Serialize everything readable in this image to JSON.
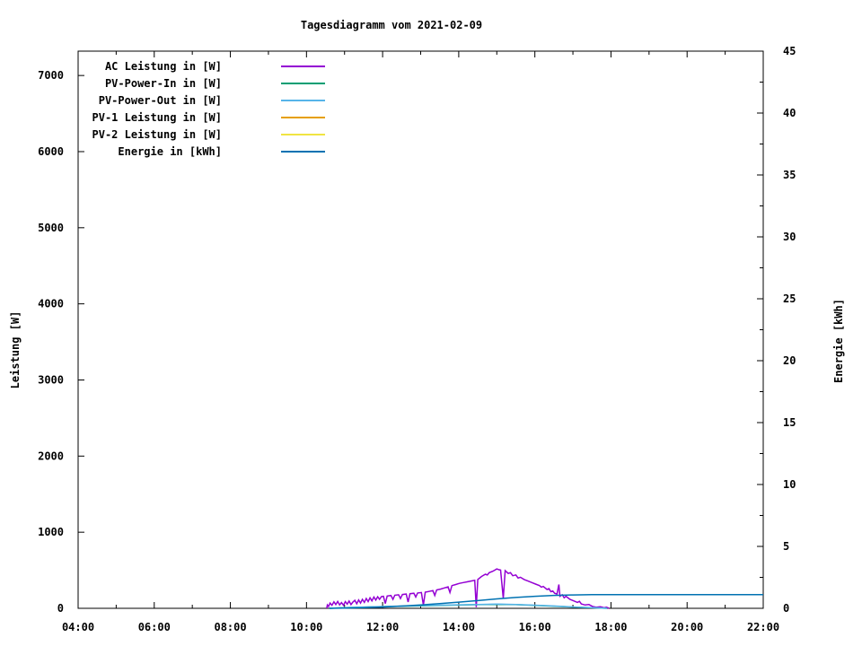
{
  "title": "Tagesdiagramm vom 2021-02-09",
  "axes": {
    "left_label": "Leistung [W]",
    "right_label": "Energie [kWh]"
  },
  "chart_data": {
    "type": "line",
    "title": "Tagesdiagramm vom 2021-02-09",
    "xlabel": "",
    "ylabel_left": "Leistung [W]",
    "ylabel_right": "Energie [kWh]",
    "grid": false,
    "legend_position": "top-left-inside",
    "background_color": "#ffffff",
    "axis_color": "#000000",
    "xlim": [
      4,
      22
    ],
    "x_major_tick_hours": [
      4,
      6,
      8,
      10,
      12,
      14,
      16,
      18,
      20,
      22
    ],
    "x_major_tick_labels": [
      "04:00",
      "06:00",
      "08:00",
      "10:00",
      "12:00",
      "14:00",
      "16:00",
      "18:00",
      "20:00",
      "22:00"
    ],
    "x_minor_tick_hours": [
      5,
      7,
      9,
      11,
      13,
      15,
      17,
      19,
      21
    ],
    "ylim_left": [
      0,
      7320
    ],
    "y_left_ticks": [
      0,
      1000,
      2000,
      3000,
      4000,
      5000,
      6000,
      7000
    ],
    "ylim_right": [
      0,
      45
    ],
    "y_right_ticks": [
      0,
      5,
      10,
      15,
      20,
      25,
      30,
      35,
      40,
      45
    ],
    "y_right_minor_ticks": [
      2.5,
      7.5,
      12.5,
      17.5,
      22.5,
      27.5,
      32.5,
      37.5,
      42.5
    ],
    "series": [
      {
        "name": "AC Leistung in [W]",
        "color": "#9400d3",
        "axis": "left",
        "points": [
          [
            10.53,
            0
          ],
          [
            10.55,
            45
          ],
          [
            10.58,
            25
          ],
          [
            10.62,
            70
          ],
          [
            10.67,
            40
          ],
          [
            10.72,
            85
          ],
          [
            10.77,
            50
          ],
          [
            10.82,
            90
          ],
          [
            10.87,
            45
          ],
          [
            10.92,
            75
          ],
          [
            10.97,
            40
          ],
          [
            11.02,
            88
          ],
          [
            11.07,
            55
          ],
          [
            11.12,
            95
          ],
          [
            11.17,
            50
          ],
          [
            11.22,
            82
          ],
          [
            11.27,
            105
          ],
          [
            11.32,
            60
          ],
          [
            11.37,
            110
          ],
          [
            11.42,
            70
          ],
          [
            11.47,
            118
          ],
          [
            11.52,
            78
          ],
          [
            11.57,
            128
          ],
          [
            11.62,
            88
          ],
          [
            11.67,
            138
          ],
          [
            11.72,
            98
          ],
          [
            11.77,
            148
          ],
          [
            11.82,
            108
          ],
          [
            11.87,
            152
          ],
          [
            11.92,
            118
          ],
          [
            11.97,
            155
          ],
          [
            12.02,
            158
          ],
          [
            12.07,
            62
          ],
          [
            12.12,
            162
          ],
          [
            12.22,
            168
          ],
          [
            12.27,
            118
          ],
          [
            12.32,
            172
          ],
          [
            12.42,
            178
          ],
          [
            12.47,
            128
          ],
          [
            12.52,
            182
          ],
          [
            12.62,
            188
          ],
          [
            12.67,
            82
          ],
          [
            12.72,
            192
          ],
          [
            12.82,
            198
          ],
          [
            12.87,
            148
          ],
          [
            12.92,
            202
          ],
          [
            13.02,
            208
          ],
          [
            13.07,
            42
          ],
          [
            13.12,
            212
          ],
          [
            13.22,
            222
          ],
          [
            13.32,
            232
          ],
          [
            13.37,
            168
          ],
          [
            13.42,
            242
          ],
          [
            13.52,
            252
          ],
          [
            13.62,
            268
          ],
          [
            13.72,
            282
          ],
          [
            13.77,
            208
          ],
          [
            13.82,
            298
          ],
          [
            13.92,
            312
          ],
          [
            14.02,
            328
          ],
          [
            14.12,
            338
          ],
          [
            14.22,
            348
          ],
          [
            14.32,
            358
          ],
          [
            14.42,
            368
          ],
          [
            14.46,
            15
          ],
          [
            14.5,
            378
          ],
          [
            14.6,
            418
          ],
          [
            14.7,
            448
          ],
          [
            14.75,
            438
          ],
          [
            14.8,
            468
          ],
          [
            14.9,
            488
          ],
          [
            15.0,
            518
          ],
          [
            15.05,
            508
          ],
          [
            15.1,
            502
          ],
          [
            15.17,
            130
          ],
          [
            15.22,
            495
          ],
          [
            15.3,
            458
          ],
          [
            15.36,
            468
          ],
          [
            15.42,
            428
          ],
          [
            15.5,
            438
          ],
          [
            15.56,
            398
          ],
          [
            15.62,
            408
          ],
          [
            15.72,
            378
          ],
          [
            15.82,
            358
          ],
          [
            15.92,
            338
          ],
          [
            16.02,
            318
          ],
          [
            16.12,
            298
          ],
          [
            16.17,
            278
          ],
          [
            16.22,
            288
          ],
          [
            16.32,
            248
          ],
          [
            16.37,
            258
          ],
          [
            16.42,
            218
          ],
          [
            16.47,
            228
          ],
          [
            16.52,
            198
          ],
          [
            16.58,
            188
          ],
          [
            16.63,
            312
          ],
          [
            16.66,
            158
          ],
          [
            16.72,
            178
          ],
          [
            16.77,
            138
          ],
          [
            16.82,
            158
          ],
          [
            16.92,
            118
          ],
          [
            17.02,
            98
          ],
          [
            17.12,
            78
          ],
          [
            17.17,
            92
          ],
          [
            17.22,
            58
          ],
          [
            17.32,
            44
          ],
          [
            17.42,
            50
          ],
          [
            17.52,
            24
          ],
          [
            17.62,
            14
          ],
          [
            17.72,
            20
          ],
          [
            17.82,
            8
          ],
          [
            17.88,
            14
          ],
          [
            17.95,
            0
          ]
        ]
      },
      {
        "name": "PV-Power-In in [W]",
        "color": "#009e73",
        "axis": "left",
        "points": [
          [
            10.6,
            0
          ],
          [
            11.0,
            8
          ],
          [
            11.5,
            14
          ],
          [
            12.0,
            22
          ],
          [
            12.5,
            28
          ],
          [
            13.0,
            33
          ],
          [
            13.5,
            38
          ],
          [
            14.0,
            43
          ],
          [
            14.5,
            48
          ],
          [
            15.0,
            52
          ],
          [
            15.5,
            48
          ],
          [
            16.0,
            38
          ],
          [
            16.5,
            28
          ],
          [
            17.0,
            16
          ],
          [
            17.5,
            7
          ],
          [
            17.9,
            0
          ]
        ]
      },
      {
        "name": "PV-Power-Out in [W]",
        "color": "#56b4e9",
        "axis": "left",
        "points": [
          [
            10.6,
            0
          ],
          [
            11.0,
            10
          ],
          [
            11.5,
            16
          ],
          [
            12.0,
            24
          ],
          [
            12.5,
            30
          ],
          [
            13.0,
            36
          ],
          [
            13.5,
            41
          ],
          [
            14.0,
            46
          ],
          [
            14.5,
            51
          ],
          [
            15.0,
            56
          ],
          [
            15.5,
            51
          ],
          [
            16.0,
            41
          ],
          [
            16.5,
            31
          ],
          [
            17.0,
            18
          ],
          [
            17.5,
            8
          ],
          [
            17.9,
            0
          ]
        ]
      },
      {
        "name": "PV-1 Leistung in [W]",
        "color": "#e69f00",
        "axis": "left",
        "points": []
      },
      {
        "name": "PV-2 Leistung in [W]",
        "color": "#f0e442",
        "axis": "left",
        "points": []
      },
      {
        "name": "Energie in [kWh]",
        "color": "#0072b2",
        "axis": "right",
        "points": [
          [
            10.6,
            0
          ],
          [
            11.0,
            0.02
          ],
          [
            11.5,
            0.05
          ],
          [
            12.0,
            0.1
          ],
          [
            12.5,
            0.18
          ],
          [
            13.0,
            0.27
          ],
          [
            13.5,
            0.38
          ],
          [
            14.0,
            0.5
          ],
          [
            14.5,
            0.62
          ],
          [
            15.0,
            0.76
          ],
          [
            15.5,
            0.88
          ],
          [
            16.0,
            0.97
          ],
          [
            16.5,
            1.04
          ],
          [
            17.0,
            1.08
          ],
          [
            17.5,
            1.1
          ],
          [
            22.0,
            1.1
          ]
        ]
      }
    ]
  }
}
